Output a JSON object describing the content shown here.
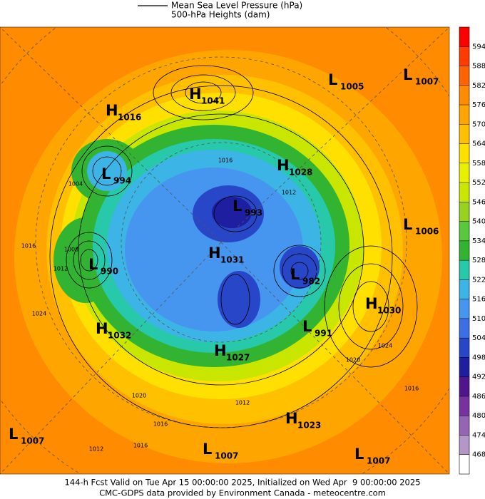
{
  "header": {
    "lines": [
      "Mean Sea Level Pressure (hPa)",
      "500-hPa Heights (dam)"
    ]
  },
  "colorbar": {
    "labels": [
      594,
      588,
      582,
      576,
      570,
      564,
      558,
      552,
      546,
      540,
      534,
      528,
      522,
      516,
      510,
      504,
      498,
      492,
      486,
      480,
      474,
      468
    ],
    "colors": [
      "#ff0000",
      "#ff3c00",
      "#ff6400",
      "#ff8c00",
      "#ffa500",
      "#ffc000",
      "#ffe000",
      "#e8f000",
      "#c8e600",
      "#96d21e",
      "#5ac83c",
      "#32b432",
      "#28c8aa",
      "#3cb4e6",
      "#4696f0",
      "#3c6ee6",
      "#2846c8",
      "#1e1ea0",
      "#50148c",
      "#7832a0",
      "#9664b4",
      "#b496c8",
      "#d2c8e6"
    ]
  },
  "centers": [
    {
      "type": "H",
      "value": 1041
    },
    {
      "type": "L",
      "value": 1005
    },
    {
      "type": "L",
      "value": 1007
    },
    {
      "type": "H",
      "value": 1016
    },
    {
      "type": "H",
      "value": 1028
    },
    {
      "type": "L",
      "value": 994
    },
    {
      "type": "L",
      "value": 993
    },
    {
      "type": "L",
      "value": 1006
    },
    {
      "type": "H",
      "value": 1031
    },
    {
      "type": "L",
      "value": 990
    },
    {
      "type": "L",
      "value": 982
    },
    {
      "type": "H",
      "value": 1030
    },
    {
      "type": "H",
      "value": 1032
    },
    {
      "type": "L",
      "value": 991
    },
    {
      "type": "H",
      "value": 1027
    },
    {
      "type": "H",
      "value": 1023
    },
    {
      "type": "L",
      "value": 1007
    },
    {
      "type": "L",
      "value": 1007
    },
    {
      "type": "L",
      "value": 1007
    }
  ],
  "contour_labels": [
    "1016",
    "1012",
    "1016",
    "1008",
    "1012",
    "1024",
    "1024",
    "1020",
    "1016",
    "1016",
    "1012",
    "1016",
    "1012",
    "1020",
    "1004"
  ],
  "footer": {
    "lines": [
      "144-h Fcst Valid on Tue Apr 15 00:00:00 2025, Initialized on Wed Apr  9 00:00:00 2025",
      "CMC-GDPS data provided by Environment Canada - meteocentre.com"
    ]
  }
}
